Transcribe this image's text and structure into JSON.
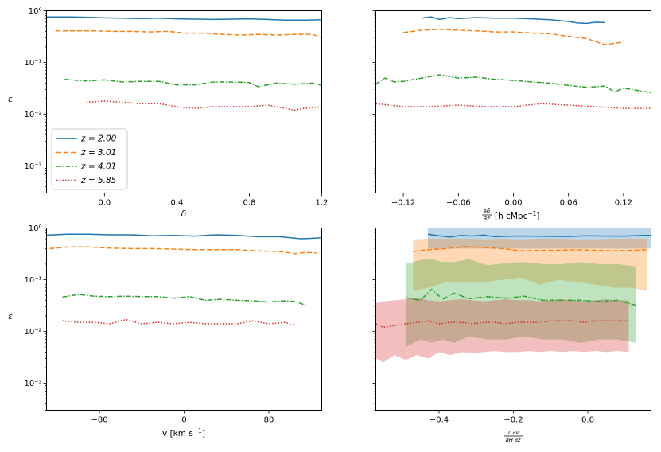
{
  "figure": {
    "ylabel_common": "ε",
    "y_tick_labels": [
      "10⁰",
      "10⁻¹",
      "10⁻²",
      "10⁻³"
    ],
    "legend": [
      {
        "label": "z = 2.00",
        "color": "#1f77b4",
        "dash": "solid"
      },
      {
        "label": "z = 3.01",
        "color": "#ff7f0e",
        "dash": "dashed"
      },
      {
        "label": "z = 4.01",
        "color": "#2ca02c",
        "dash": "dashdot"
      },
      {
        "label": "z = 5.85",
        "color": "#d62728",
        "dash": "dotted"
      }
    ]
  },
  "chart_data": [
    {
      "type": "line",
      "id": "delta",
      "xlabel": "δ",
      "ylabel": "ε",
      "xlim": [
        -0.32,
        1.2
      ],
      "ylim": [
        0.0003,
        1.0
      ],
      "yscale": "log",
      "xticks": [
        0.0,
        0.4,
        0.8,
        1.2
      ],
      "xtick_labels": [
        "0.0",
        "0.4",
        "0.8",
        "1.2"
      ],
      "legend_position": "lower-left",
      "series": [
        {
          "name": "z = 2.00",
          "x": [
            -0.32,
            -0.2,
            -0.1,
            0.0,
            0.1,
            0.2,
            0.3,
            0.4,
            0.5,
            0.6,
            0.7,
            0.8,
            0.9,
            1.0,
            1.1,
            1.2
          ],
          "y": [
            0.76,
            0.76,
            0.75,
            0.73,
            0.72,
            0.71,
            0.72,
            0.7,
            0.69,
            0.68,
            0.69,
            0.7,
            0.68,
            0.66,
            0.66,
            0.67
          ]
        },
        {
          "name": "z = 3.01",
          "x": [
            -0.27,
            -0.15,
            -0.05,
            0.05,
            0.15,
            0.25,
            0.35,
            0.45,
            0.55,
            0.65,
            0.75,
            0.85,
            0.95,
            1.05,
            1.15,
            1.2
          ],
          "y": [
            0.41,
            0.41,
            0.41,
            0.4,
            0.4,
            0.39,
            0.4,
            0.37,
            0.37,
            0.35,
            0.34,
            0.35,
            0.34,
            0.35,
            0.35,
            0.3
          ]
        },
        {
          "name": "z = 4.01",
          "x": [
            -0.22,
            -0.1,
            0.0,
            0.1,
            0.2,
            0.3,
            0.4,
            0.5,
            0.6,
            0.7,
            0.8,
            0.85,
            0.95,
            1.05,
            1.15,
            1.2
          ],
          "y": [
            0.047,
            0.044,
            0.046,
            0.042,
            0.043,
            0.043,
            0.037,
            0.037,
            0.042,
            0.042,
            0.041,
            0.034,
            0.04,
            0.038,
            0.04,
            0.036
          ]
        },
        {
          "name": "z = 5.85",
          "x": [
            -0.1,
            0.0,
            0.1,
            0.2,
            0.3,
            0.4,
            0.5,
            0.6,
            0.7,
            0.8,
            0.9,
            1.0,
            1.05,
            1.1,
            1.2
          ],
          "y": [
            0.017,
            0.018,
            0.017,
            0.016,
            0.016,
            0.014,
            0.013,
            0.014,
            0.014,
            0.014,
            0.015,
            0.013,
            0.012,
            0.013,
            0.014
          ]
        }
      ]
    },
    {
      "type": "line",
      "id": "ddz",
      "xlabel": "∂δ/∂z [h cMpc⁻¹]",
      "xlabel_parts": {
        "num": "∂δ",
        "den": "∂z",
        "unit": "[h cMpc",
        "unit_sup": "−1",
        "unit_end": "]"
      },
      "ylabel": "",
      "xlim": [
        -0.15,
        0.15
      ],
      "ylim": [
        0.0003,
        1.0
      ],
      "yscale": "log",
      "xticks": [
        -0.12,
        -0.06,
        0.0,
        0.06,
        0.12
      ],
      "xtick_labels": [
        "−0.12",
        "−0.06",
        "0.00",
        "0.06",
        "0.12"
      ],
      "series": [
        {
          "name": "z = 2.00",
          "x": [
            -0.1,
            -0.09,
            -0.08,
            -0.07,
            -0.06,
            -0.04,
            -0.02,
            0.0,
            0.02,
            0.04,
            0.06,
            0.07,
            0.08,
            0.09,
            0.1
          ],
          "y": [
            0.72,
            0.76,
            0.68,
            0.74,
            0.71,
            0.74,
            0.72,
            0.72,
            0.7,
            0.67,
            0.62,
            0.58,
            0.57,
            0.6,
            0.59
          ]
        },
        {
          "name": "z = 3.01",
          "x": [
            -0.12,
            -0.1,
            -0.08,
            -0.06,
            -0.04,
            -0.02,
            0.0,
            0.02,
            0.04,
            0.06,
            0.08,
            0.1,
            0.12
          ],
          "y": [
            0.38,
            0.42,
            0.44,
            0.42,
            0.41,
            0.39,
            0.39,
            0.37,
            0.36,
            0.32,
            0.29,
            0.22,
            0.25
          ]
        },
        {
          "name": "z = 4.01",
          "x": [
            -0.15,
            -0.14,
            -0.13,
            -0.12,
            -0.1,
            -0.08,
            -0.06,
            -0.04,
            -0.02,
            0.0,
            0.02,
            0.04,
            0.06,
            0.08,
            0.1,
            0.11,
            0.12,
            0.13,
            0.15
          ],
          "y": [
            0.038,
            0.05,
            0.042,
            0.043,
            0.05,
            0.058,
            0.05,
            0.052,
            0.047,
            0.045,
            0.042,
            0.04,
            0.036,
            0.033,
            0.035,
            0.027,
            0.032,
            0.03,
            0.026
          ]
        },
        {
          "name": "z = 5.85",
          "x": [
            -0.15,
            -0.12,
            -0.09,
            -0.06,
            -0.03,
            0.0,
            0.03,
            0.06,
            0.09,
            0.12,
            0.15
          ],
          "y": [
            0.016,
            0.014,
            0.014,
            0.015,
            0.014,
            0.014,
            0.016,
            0.015,
            0.014,
            0.013,
            0.013
          ]
        }
      ]
    },
    {
      "type": "line",
      "id": "velocity",
      "xlabel": "v [km s⁻¹]",
      "xlabel_parts": {
        "main": "v [km s",
        "sup": "−1",
        "end": "]"
      },
      "ylabel": "ε",
      "xlim": [
        -130,
        130
      ],
      "ylim": [
        0.0003,
        1.0
      ],
      "yscale": "log",
      "xticks": [
        -80,
        0,
        80
      ],
      "xtick_labels": [
        "−80",
        "0",
        "80"
      ],
      "series": [
        {
          "name": "z = 2.00",
          "x": [
            -130,
            -110,
            -90,
            -70,
            -50,
            -30,
            -10,
            10,
            30,
            50,
            70,
            90,
            110,
            120,
            130
          ],
          "y": [
            0.73,
            0.76,
            0.76,
            0.74,
            0.74,
            0.71,
            0.72,
            0.7,
            0.74,
            0.72,
            0.68,
            0.68,
            0.62,
            0.63,
            0.65
          ]
        },
        {
          "name": "z = 3.01",
          "x": [
            -127,
            -110,
            -90,
            -70,
            -50,
            -30,
            -10,
            10,
            30,
            50,
            70,
            90,
            105,
            115,
            125
          ],
          "y": [
            0.4,
            0.43,
            0.43,
            0.41,
            0.4,
            0.4,
            0.39,
            0.38,
            0.38,
            0.38,
            0.36,
            0.35,
            0.32,
            0.34,
            0.33
          ]
        },
        {
          "name": "z = 4.01",
          "x": [
            -115,
            -100,
            -85,
            -70,
            -55,
            -40,
            -25,
            -10,
            5,
            20,
            35,
            50,
            65,
            80,
            95,
            105,
            115
          ],
          "y": [
            0.046,
            0.052,
            0.048,
            0.047,
            0.048,
            0.047,
            0.047,
            0.044,
            0.047,
            0.04,
            0.042,
            0.04,
            0.039,
            0.037,
            0.039,
            0.038,
            0.032
          ]
        },
        {
          "name": "z = 5.85",
          "x": [
            -115,
            -100,
            -85,
            -70,
            -55,
            -40,
            -25,
            -10,
            5,
            20,
            35,
            50,
            65,
            80,
            95,
            105
          ],
          "y": [
            0.016,
            0.015,
            0.015,
            0.014,
            0.017,
            0.014,
            0.015,
            0.014,
            0.015,
            0.014,
            0.014,
            0.014,
            0.016,
            0.014,
            0.015,
            0.013
          ]
        }
      ]
    },
    {
      "type": "line",
      "id": "dvdz",
      "xlabel": "(1/aH) ∂v/∂z",
      "xlabel_parts": {
        "num": "1  ∂v",
        "den": "aH ∂z"
      },
      "ylabel": "",
      "xlim": [
        -0.57,
        0.17
      ],
      "ylim": [
        0.0003,
        1.0
      ],
      "yscale": "log",
      "xticks": [
        -0.4,
        -0.2,
        0.0
      ],
      "xtick_labels": [
        "−0.4",
        "−0.2",
        "0.0"
      ],
      "shaded_bands": true,
      "series": [
        {
          "name": "z = 2.00",
          "x": [
            -0.43,
            -0.4,
            -0.37,
            -0.34,
            -0.31,
            -0.28,
            -0.25,
            -0.2,
            -0.15,
            -0.1,
            -0.05,
            0.0,
            0.05,
            0.1,
            0.15,
            0.17
          ],
          "y": [
            0.76,
            0.71,
            0.67,
            0.72,
            0.7,
            0.73,
            0.68,
            0.7,
            0.7,
            0.69,
            0.69,
            0.71,
            0.7,
            0.7,
            0.72,
            0.72
          ],
          "band_low": [
            0.4,
            0.4,
            0.4,
            0.4,
            0.4,
            0.4,
            0.4,
            0.4,
            0.4,
            0.4,
            0.4,
            0.4,
            0.4,
            0.4,
            0.4,
            0.4
          ],
          "band_high": [
            1.0,
            1.0,
            1.0,
            1.0,
            1.0,
            1.0,
            1.0,
            1.0,
            1.0,
            1.0,
            1.0,
            1.0,
            1.0,
            1.0,
            1.0,
            1.0
          ]
        },
        {
          "name": "z = 3.01",
          "x": [
            -0.47,
            -0.43,
            -0.38,
            -0.33,
            -0.28,
            -0.23,
            -0.18,
            -0.13,
            -0.08,
            -0.03,
            0.02,
            0.07,
            0.12,
            0.16
          ],
          "y": [
            0.35,
            0.38,
            0.4,
            0.44,
            0.42,
            0.4,
            0.36,
            0.37,
            0.37,
            0.38,
            0.37,
            0.36,
            0.37,
            0.38
          ],
          "band_low": [
            0.06,
            0.07,
            0.09,
            0.09,
            0.09,
            0.1,
            0.11,
            0.08,
            0.1,
            0.09,
            0.08,
            0.07,
            0.07,
            0.06
          ],
          "band_high": [
            0.6,
            0.62,
            0.62,
            0.62,
            0.6,
            0.62,
            0.6,
            0.62,
            0.62,
            0.6,
            0.6,
            0.62,
            0.62,
            0.62
          ]
        },
        {
          "name": "z = 4.01",
          "x": [
            -0.49,
            -0.45,
            -0.42,
            -0.39,
            -0.36,
            -0.32,
            -0.27,
            -0.22,
            -0.17,
            -0.12,
            -0.07,
            -0.02,
            0.03,
            0.08,
            0.13
          ],
          "y": [
            0.045,
            0.04,
            0.065,
            0.042,
            0.055,
            0.043,
            0.047,
            0.044,
            0.048,
            0.04,
            0.04,
            0.04,
            0.038,
            0.04,
            0.032
          ],
          "band_low": [
            0.005,
            0.007,
            0.006,
            0.007,
            0.006,
            0.008,
            0.007,
            0.007,
            0.008,
            0.007,
            0.007,
            0.006,
            0.007,
            0.007,
            0.006
          ],
          "band_high": [
            0.2,
            0.24,
            0.25,
            0.22,
            0.22,
            0.25,
            0.19,
            0.21,
            0.22,
            0.2,
            0.2,
            0.22,
            0.2,
            0.2,
            0.18
          ]
        },
        {
          "name": "z = 5.85",
          "x": [
            -0.57,
            -0.55,
            -0.52,
            -0.49,
            -0.46,
            -0.43,
            -0.4,
            -0.37,
            -0.34,
            -0.31,
            -0.28,
            -0.25,
            -0.22,
            -0.19,
            -0.16,
            -0.13,
            -0.1,
            -0.07,
            -0.04,
            -0.01,
            0.02,
            0.05,
            0.08,
            0.11
          ],
          "y": [
            0.014,
            0.012,
            0.013,
            0.014,
            0.015,
            0.016,
            0.014,
            0.015,
            0.015,
            0.014,
            0.015,
            0.015,
            0.014,
            0.015,
            0.015,
            0.015,
            0.016,
            0.016,
            0.016,
            0.015,
            0.016,
            0.016,
            0.016,
            0.016
          ],
          "band_low": [
            0.003,
            0.0025,
            0.0035,
            0.0028,
            0.0035,
            0.003,
            0.004,
            0.0035,
            0.004,
            0.0038,
            0.004,
            0.0042,
            0.004,
            0.004,
            0.0042,
            0.004,
            0.0042,
            0.004,
            0.0042,
            0.004,
            0.0042,
            0.004,
            0.0042,
            0.004
          ],
          "band_high": [
            0.035,
            0.038,
            0.04,
            0.042,
            0.045,
            0.04,
            0.038,
            0.04,
            0.042,
            0.04,
            0.038,
            0.04,
            0.042,
            0.04,
            0.04,
            0.038,
            0.04,
            0.042,
            0.04,
            0.038,
            0.04,
            0.042,
            0.04,
            0.04
          ]
        }
      ]
    }
  ]
}
